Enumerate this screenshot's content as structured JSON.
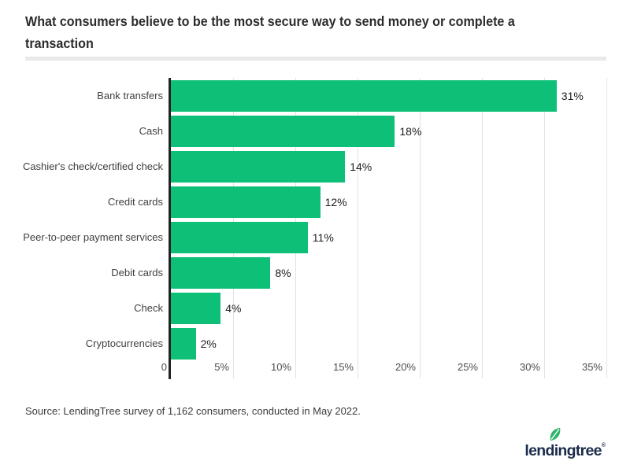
{
  "header": {
    "title": "What consumers believe to be the most secure way to send money or complete a transaction",
    "title_lines": [
      "What consumers believe to be the most secure way to send money or complete a",
      "transaction"
    ]
  },
  "footer": {
    "source": "Source: LendingTree survey of 1,162 consumers, conducted in May 2022.",
    "logo": {
      "wordmark": "lendingtree",
      "trademark": "®",
      "wordmark_color": "#1b2b4a",
      "leaf_color": "#2db36a"
    }
  },
  "colors": {
    "bar_green": "#0ebf78",
    "axis_dark": "#222222",
    "gridline": "#e3e3e3",
    "divider": "#e9e9e9",
    "title_text": "#2b2b2b",
    "category_text": "#3f3f3f",
    "tick_text": "#4d4d4d",
    "value_text": "#1c1c1c"
  },
  "chart_data": {
    "type": "bar",
    "orientation": "horizontal",
    "title": "What consumers believe to be the most secure way to send money or complete a transaction",
    "categories": [
      "Bank transfers",
      "Cash",
      "Cashier's check/certified check",
      "Credit cards",
      "Peer-to-peer payment services",
      "Debit cards",
      "Check",
      "Cryptocurrencies"
    ],
    "values": [
      31,
      18,
      14,
      12,
      11,
      8,
      4,
      2
    ],
    "value_labels": [
      "31%",
      "18%",
      "14%",
      "12%",
      "11%",
      "8%",
      "4%",
      "2%"
    ],
    "x_tick_values": [
      0,
      5,
      10,
      15,
      20,
      25,
      30,
      35
    ],
    "x_tick_labels": [
      "0",
      "5%",
      "10%",
      "15%",
      "20%",
      "25%",
      "30%",
      "35%"
    ],
    "xlim": [
      0,
      35
    ],
    "xlabel": "",
    "ylabel": "",
    "grid": "vertical",
    "bar_color": "#0ebf78",
    "legend": "none"
  }
}
